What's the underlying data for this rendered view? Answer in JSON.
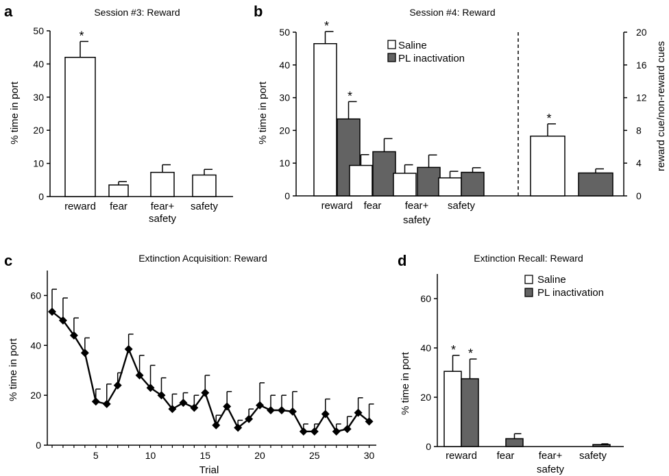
{
  "colors": {
    "saline": "#ffffff",
    "pl": "#636363",
    "line": "#000000"
  },
  "chart_data": [
    {
      "panel": "a",
      "type": "bar",
      "title": "Session #3: Reward",
      "ylabel": "% time in port",
      "ylim": [
        0,
        50
      ],
      "yticks": [
        0,
        10,
        20,
        30,
        40,
        50
      ],
      "categories": [
        "reward",
        "fear",
        "fear+\nsafety",
        "safety"
      ],
      "series": [
        {
          "values": [
            42,
            3.5,
            7.3,
            6.5
          ],
          "errors": [
            4.8,
            1.0,
            2.3,
            1.7
          ]
        }
      ],
      "stars": [
        "*",
        "",
        "",
        ""
      ]
    },
    {
      "panel": "b",
      "type": "bar",
      "title": "Session #4: Reward",
      "ylabel": "% time  in port",
      "ylim": [
        0,
        50
      ],
      "yticks": [
        0,
        10,
        20,
        30,
        40,
        50
      ],
      "categories": [
        "reward",
        "fear",
        "fear+\nsafety",
        "safety"
      ],
      "series": [
        {
          "name": "Saline",
          "values": [
            46.5,
            9.3,
            6.9,
            5.5
          ],
          "errors": [
            3.7,
            3.3,
            2.6,
            2.0
          ]
        },
        {
          "name": "PL inactivation",
          "values": [
            23.5,
            13.5,
            8.7,
            7.2
          ],
          "errors": [
            5.3,
            4.0,
            3.8,
            1.4
          ]
        }
      ],
      "stars": [
        [
          "*",
          "*"
        ],
        [
          "",
          ""
        ],
        [
          "",
          ""
        ],
        [
          "",
          ""
        ]
      ],
      "right_axis": {
        "ylabel": "reward cue/non-reward cues",
        "ylim": [
          0,
          20
        ],
        "yticks": [
          0,
          4,
          8,
          12,
          16,
          20
        ],
        "values": [
          7.3,
          2.8
        ],
        "errors": [
          1.5,
          0.5
        ],
        "stars": [
          "*",
          ""
        ]
      }
    },
    {
      "panel": "c",
      "type": "line",
      "title": "Extinction Acquisition: Reward",
      "xlabel": "Trial",
      "ylabel": "% time in port",
      "xlim": [
        1,
        30
      ],
      "ylim": [
        0,
        70
      ],
      "xticks": [
        5,
        10,
        15,
        20,
        25,
        30
      ],
      "yticks": [
        0,
        20,
        40,
        60
      ],
      "x": [
        1,
        2,
        3,
        4,
        5,
        6,
        7,
        8,
        9,
        10,
        11,
        12,
        13,
        14,
        15,
        16,
        17,
        18,
        19,
        20,
        21,
        22,
        23,
        24,
        25,
        26,
        27,
        28,
        29,
        30
      ],
      "series": [
        {
          "values": [
            53.5,
            50,
            44,
            37,
            17.5,
            16.5,
            24,
            38.5,
            28,
            23,
            20,
            14.5,
            17,
            15,
            21,
            8,
            15.5,
            7,
            10.5,
            16,
            14,
            14,
            13.5,
            5.5,
            5.5,
            12.5,
            5.5,
            6.5,
            13,
            9.5
          ],
          "errors": [
            9,
            9,
            7,
            6,
            5,
            8,
            5,
            6,
            8,
            9,
            7,
            6,
            4,
            5,
            7,
            4,
            6,
            3,
            4,
            9,
            6,
            6,
            8,
            3,
            3,
            6,
            3,
            5,
            6,
            7
          ]
        }
      ]
    },
    {
      "panel": "d",
      "type": "bar",
      "title": "Extinction Recall: Reward",
      "ylabel": "% time in port",
      "ylim": [
        0,
        70
      ],
      "yticks": [
        0,
        20,
        40,
        60
      ],
      "categories": [
        "reward",
        "fear",
        "fear+\nsafety",
        "safety"
      ],
      "series": [
        {
          "name": "Saline",
          "values": [
            30.5,
            0,
            0,
            0
          ],
          "errors": [
            6.5,
            0,
            0,
            0
          ]
        },
        {
          "name": "PL inactivation",
          "values": [
            27.5,
            3.2,
            0,
            0.8
          ],
          "errors": [
            8,
            2.0,
            0,
            0.3
          ]
        }
      ],
      "stars": [
        [
          "*",
          "*"
        ],
        [
          "",
          ""
        ],
        [
          "",
          ""
        ],
        [
          "",
          ""
        ]
      ]
    }
  ]
}
